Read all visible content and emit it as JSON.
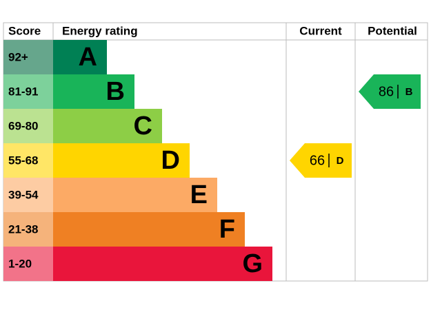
{
  "header": {
    "score": "Score",
    "rating": "Energy rating",
    "current": "Current",
    "potential": "Potential"
  },
  "bands": [
    {
      "score": "92+",
      "letter": "A",
      "color": "#008054",
      "light": "#66a68c"
    },
    {
      "score": "81-91",
      "letter": "B",
      "color": "#19b459",
      "light": "#7dd19b"
    },
    {
      "score": "69-80",
      "letter": "C",
      "color": "#8dce46",
      "light": "#bbe291"
    },
    {
      "score": "55-68",
      "letter": "D",
      "color": "#ffd500",
      "light": "#ffe666"
    },
    {
      "score": "39-54",
      "letter": "E",
      "color": "#fcaa65",
      "light": "#fdcca3"
    },
    {
      "score": "21-38",
      "letter": "F",
      "color": "#ef8023",
      "light": "#f5b37b"
    },
    {
      "score": "1-20",
      "letter": "G",
      "color": "#e9153b",
      "light": "#f27389"
    }
  ],
  "current": {
    "value": 66,
    "letter": "D"
  },
  "potential": {
    "value": 86,
    "letter": "B"
  }
}
